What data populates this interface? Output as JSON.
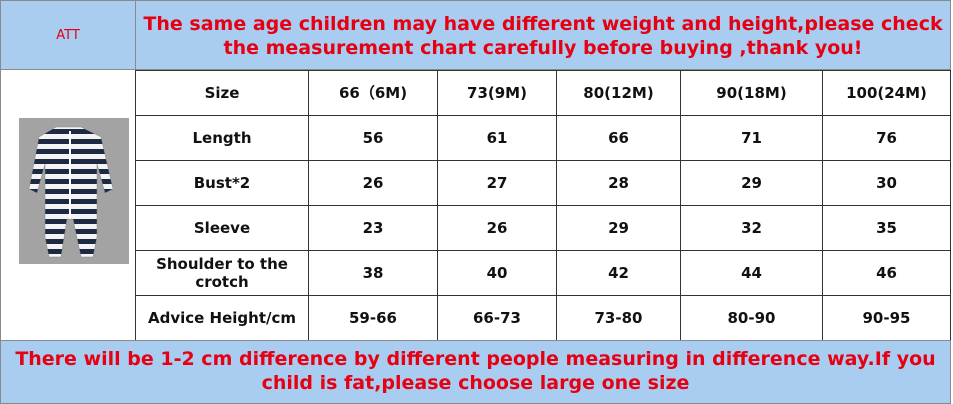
{
  "header": {
    "label": "ATT",
    "notice": [
      "The same age children may have different weight and height,please check",
      "the measurement chart carefully before buying ,thank you!"
    ]
  },
  "table": {
    "rows": [
      [
        "Size",
        "66（6M)",
        "73(9M)",
        "80(12M)",
        "90(18M)",
        "100(24M)"
      ],
      [
        "Length",
        56,
        61,
        66,
        71,
        76
      ],
      [
        "Bust*2",
        26,
        27,
        28,
        29,
        30
      ],
      [
        "Sleeve",
        23,
        26,
        29,
        32,
        35
      ],
      [
        "Shoulder to the crotch",
        38,
        40,
        42,
        44,
        46
      ],
      [
        "Advice Height/cm",
        "59-66",
        "66-73",
        "73-80",
        "80-90",
        "90-95"
      ]
    ]
  },
  "footer": {
    "notice": [
      "There will be 1-2 cm difference by different people measuring in difference way.If you",
      "child is fat,please choose large one size"
    ]
  }
}
